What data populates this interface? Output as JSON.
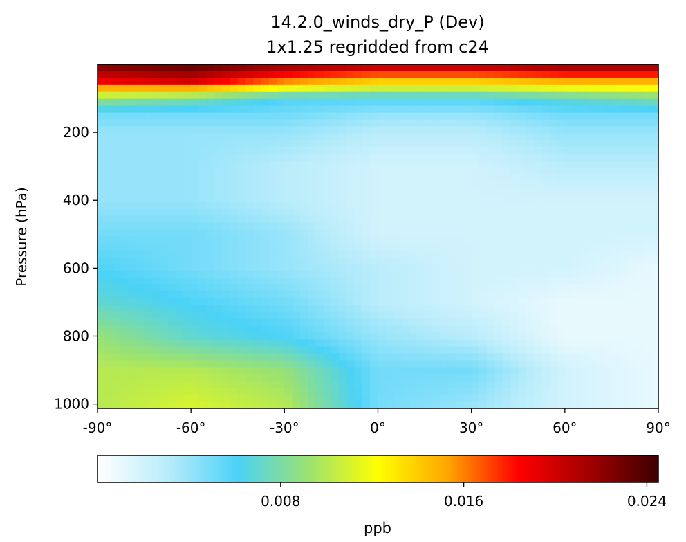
{
  "chart_data": {
    "type": "heatmap",
    "title": "14.2.0_winds_dry_P (Dev)",
    "subtitle": "1x1.25 regridded from c24",
    "xlabel": "",
    "ylabel": "Pressure (hPa)",
    "xlim": [
      -90,
      90
    ],
    "ylim": [
      1013,
      0
    ],
    "x_ticks": [
      "-90°",
      "-60°",
      "-30°",
      "0°",
      "30°",
      "60°",
      "90°"
    ],
    "x_tick_values": [
      -90,
      -60,
      -30,
      0,
      30,
      60,
      90
    ],
    "y_ticks": [
      "200",
      "400",
      "600",
      "800",
      "1000"
    ],
    "y_tick_values": [
      200,
      400,
      600,
      800,
      1000
    ],
    "colormap": "WhGrYlRd",
    "colorbar": {
      "label": "ppb",
      "range": [
        0,
        0.0245
      ],
      "ticks": [
        "0.008",
        "0.016",
        "0.024"
      ],
      "tick_values": [
        0.008,
        0.016,
        0.024
      ],
      "colors": [
        "#ffffff",
        "#b9ecfb",
        "#4bd2f7",
        "#9be271",
        "#ffff00",
        "#ffa500",
        "#ff0000",
        "#a30000",
        "#3c0000"
      ]
    },
    "grid": false,
    "legend": "none",
    "field_samples": {
      "lat": [
        -90,
        -60,
        -30,
        0,
        30,
        60,
        90
      ],
      "pressure": [
        10,
        50,
        100,
        150,
        200,
        300,
        400,
        500,
        600,
        700,
        800,
        900,
        1000
      ],
      "values": [
        [
          0.022,
          0.023,
          0.021,
          0.02,
          0.02,
          0.021,
          0.021
        ],
        [
          0.019,
          0.02,
          0.016,
          0.014,
          0.014,
          0.015,
          0.015
        ],
        [
          0.009,
          0.008,
          0.006,
          0.006,
          0.006,
          0.007,
          0.008
        ],
        [
          0.005,
          0.005,
          0.005,
          0.004,
          0.004,
          0.005,
          0.005
        ],
        [
          0.004,
          0.004,
          0.004,
          0.003,
          0.003,
          0.004,
          0.004
        ],
        [
          0.004,
          0.004,
          0.003,
          0.002,
          0.002,
          0.003,
          0.003
        ],
        [
          0.004,
          0.004,
          0.003,
          0.002,
          0.002,
          0.002,
          0.002
        ],
        [
          0.005,
          0.005,
          0.004,
          0.002,
          0.002,
          0.002,
          0.002
        ],
        [
          0.006,
          0.005,
          0.004,
          0.003,
          0.002,
          0.002,
          0.001
        ],
        [
          0.007,
          0.006,
          0.005,
          0.003,
          0.002,
          0.001,
          0.001
        ],
        [
          0.009,
          0.007,
          0.006,
          0.004,
          0.003,
          0.001,
          0.001
        ],
        [
          0.01,
          0.01,
          0.009,
          0.005,
          0.005,
          0.002,
          0.001
        ],
        [
          0.01,
          0.011,
          0.01,
          0.005,
          0.004,
          0.002,
          0.001
        ]
      ]
    }
  }
}
